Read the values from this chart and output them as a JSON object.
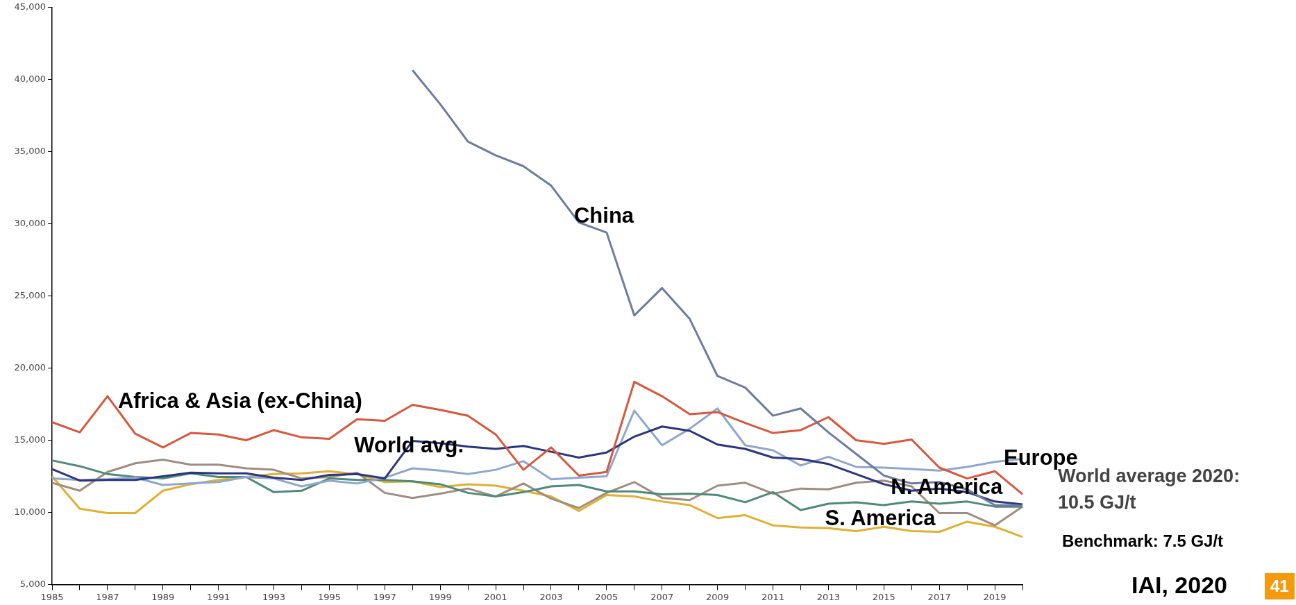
{
  "chart_data": {
    "type": "line",
    "marker": "none",
    "categories": [
      "1985",
      null,
      "1987",
      null,
      "1989",
      null,
      "1991",
      null,
      "1993",
      null,
      "1995",
      null,
      "1997",
      null,
      "1999",
      null,
      "2001",
      null,
      "2003",
      null,
      "2005",
      null,
      "2007",
      null,
      "2009",
      null,
      "2011",
      null,
      "2013",
      null,
      "2015",
      null,
      "2017",
      null,
      "2019",
      null
    ],
    "ylim": [
      5000,
      45000
    ],
    "yticks": [
      {
        "value": 5000,
        "label": "5,000"
      },
      {
        "value": 10000,
        "label": "10,000"
      },
      {
        "value": 15000,
        "label": "15,000"
      },
      {
        "value": 20000,
        "label": "20,000"
      },
      {
        "value": 25000,
        "label": "25,000"
      },
      {
        "value": 30000,
        "label": "30,000"
      },
      {
        "value": 35000,
        "label": "35,000"
      },
      {
        "value": 40000,
        "label": "40,000"
      },
      {
        "value": 45000,
        "label": "45,000"
      }
    ],
    "series": [
      {
        "name": "China",
        "color": "#6e7ba0",
        "values": [
          null,
          null,
          null,
          null,
          null,
          null,
          null,
          null,
          null,
          null,
          null,
          null,
          null,
          40650,
          38300,
          35700,
          34750,
          34000,
          32650,
          30100,
          29400,
          23650,
          25550,
          23400,
          19450,
          18650,
          16700,
          17200,
          15550,
          14050,
          12550,
          12000,
          12100,
          11600,
          10500,
          10450
        ]
      },
      {
        "name": "Africa & Asia (ex-China)",
        "color": "#d9573b",
        "values": [
          16250,
          15550,
          18050,
          15450,
          14500,
          15500,
          15400,
          15000,
          15700,
          15200,
          15100,
          16450,
          16350,
          17450,
          17100,
          16700,
          15400,
          12950,
          14500,
          12550,
          12800,
          19050,
          18050,
          16800,
          16950,
          16200,
          15500,
          15700,
          16600,
          15000,
          14750,
          15050,
          13100,
          12350,
          12850,
          11250
        ]
      },
      {
        "name": "World avg.",
        "color": "#2b3580",
        "values": [
          13000,
          12200,
          12250,
          12250,
          12500,
          12750,
          12700,
          12700,
          12400,
          12250,
          12600,
          12650,
          12350,
          14950,
          14800,
          14550,
          14400,
          14600,
          14200,
          13800,
          14150,
          15250,
          15950,
          15650,
          14700,
          14400,
          13800,
          13700,
          13350,
          12650,
          11950,
          11500,
          11650,
          11400,
          10750,
          10550
        ]
      },
      {
        "name": "Europe",
        "color": "#8fa6cf",
        "values": [
          12350,
          12250,
          12300,
          12400,
          11900,
          12000,
          12100,
          12450,
          12350,
          11800,
          12200,
          12000,
          12400,
          13050,
          12900,
          12650,
          12950,
          13550,
          12300,
          12400,
          12500,
          17050,
          14650,
          15800,
          17200,
          14650,
          14300,
          13250,
          13850,
          13150,
          13100,
          13000,
          12900,
          13150,
          13500,
          13700
        ]
      },
      {
        "name": "N. America",
        "color": "#4f8a78",
        "values": [
          13600,
          13200,
          12650,
          12450,
          12350,
          12700,
          12450,
          12450,
          11400,
          11500,
          12350,
          12250,
          12250,
          12150,
          11950,
          11350,
          11100,
          11400,
          11800,
          11900,
          11450,
          11450,
          11250,
          11300,
          11200,
          10700,
          11400,
          10150,
          10600,
          10700,
          10500,
          10750,
          10600,
          10750,
          10400,
          10400
        ]
      },
      {
        "color": "#a08c80",
        "values": [
          12050,
          11500,
          12800,
          13400,
          13650,
          13300,
          13300,
          13050,
          12950,
          12350,
          12450,
          12750,
          11350,
          11000,
          11300,
          11650,
          11100,
          12000,
          10950,
          10300,
          11350,
          12100,
          11000,
          10850,
          11850,
          12050,
          11300,
          11650,
          11600,
          12050,
          12200,
          11800,
          9950,
          9950,
          9100,
          10400
        ]
      },
      {
        "name": "S. America",
        "color": "#e0b030",
        "values": [
          12500,
          10250,
          9950,
          9950,
          11500,
          11950,
          12250,
          12450,
          12650,
          12700,
          12850,
          12650,
          12100,
          12150,
          11750,
          11950,
          11850,
          11500,
          11100,
          10100,
          11200,
          11100,
          10750,
          10500,
          9600,
          9800,
          9100,
          8950,
          8900,
          8700,
          9000,
          8700,
          8650,
          9350,
          9000,
          8300
        ]
      }
    ],
    "annotations": [
      "World average 2020:\n10.5 GJ/t",
      "Benchmark: 7.5 GJ/t",
      "IAI, 2020",
      "41"
    ]
  }
}
